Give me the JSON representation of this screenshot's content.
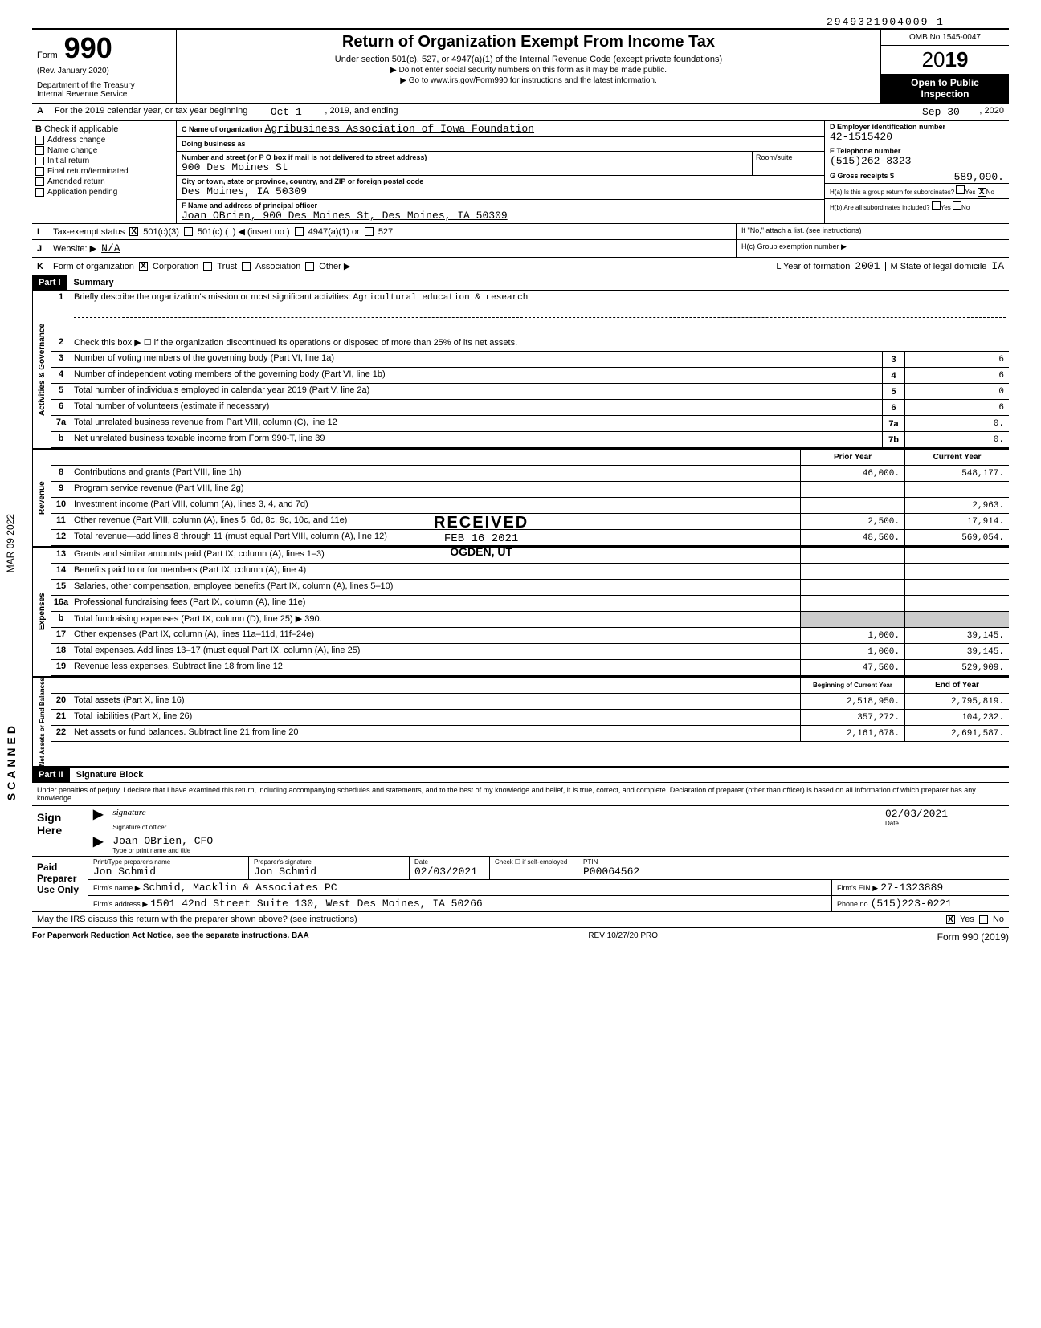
{
  "top_id": "2949321904009 1",
  "form": {
    "label": "Form",
    "number": "990",
    "rev": "(Rev. January 2020)",
    "dept1": "Department of the Treasury",
    "dept2": "Internal Revenue Service",
    "title": "Return of Organization Exempt From Income Tax",
    "sub1": "Under section 501(c), 527, or 4947(a)(1) of the Internal Revenue Code (except private foundations)",
    "sub2": "▶ Do not enter social security numbers on this form as it may be made public.",
    "sub3": "▶ Go to www.irs.gov/Form990 for instructions and the latest information.",
    "omb": "OMB No 1545-0047",
    "year_prefix": "20",
    "year_suffix": "19",
    "open1": "Open to Public",
    "open2": "Inspection"
  },
  "rowA": {
    "letter": "A",
    "text": "For the 2019 calendar year, or tax year beginning",
    "begin": "Oct 1",
    "mid": ", 2019, and ending",
    "end": "Sep 30",
    "endyear": ", 2020"
  },
  "colB": {
    "letter": "B",
    "label": "Check if applicable",
    "items": [
      "Address change",
      "Name change",
      "Initial return",
      "Final return/terminated",
      "Amended return",
      "Application pending"
    ]
  },
  "colC": {
    "c_label": "C Name of organization",
    "org": "Agribusiness Association of Iowa Foundation",
    "dba_label": "Doing business as",
    "street_label": "Number and street (or P O box if mail is not delivered to street address)",
    "street": "900 Des Moines St",
    "room_label": "Room/suite",
    "city_label": "City or town, state or province, country, and ZIP or foreign postal code",
    "city": "Des Moines, IA 50309",
    "f_label": "F Name and address of principal officer",
    "officer": "Joan OBrien, 900 Des Moines St, Des Moines, IA 50309"
  },
  "colD": {
    "d_label": "D Employer identification number",
    "ein": "42-1515420",
    "e_label": "E Telephone number",
    "phone": "(515)262-8323",
    "g_label": "G Gross receipts $",
    "gross": "589,090.",
    "ha_label": "H(a) Is this a group return for subordinates?",
    "ha_yes": "Yes",
    "ha_no": "No",
    "hb_label": "H(b) Are all subordinates included?",
    "hb_yes": "Yes",
    "hb_no": "No",
    "hb_note": "If \"No,\" attach a list. (see instructions)",
    "hc_label": "H(c) Group exemption number ▶"
  },
  "rowI": {
    "letter": "I",
    "label": "Tax-exempt status",
    "opt1": "501(c)(3)",
    "opt2": "501(c) (",
    "opt2b": ") ◀ (insert no )",
    "opt3": "4947(a)(1) or",
    "opt4": "527"
  },
  "rowJ": {
    "letter": "J",
    "label": "Website: ▶",
    "value": "N/A"
  },
  "rowK": {
    "letter": "K",
    "label": "Form of organization",
    "opts": [
      "Corporation",
      "Trust",
      "Association",
      "Other ▶"
    ],
    "l_label": "L Year of formation",
    "l_val": "2001",
    "m_label": "M State of legal domicile",
    "m_val": "IA"
  },
  "part1": {
    "hdr": "Part I",
    "title": "Summary",
    "line1_num": "1",
    "line1_text": "Briefly describe the organization's mission or most significant activities:",
    "line1_val": "Agricultural education & research",
    "line2_num": "2",
    "line2_text": "Check this box ▶ ☐ if the organization discontinued its operations or disposed of more than 25% of its net assets.",
    "lines_gov": [
      {
        "n": "3",
        "t": "Number of voting members of the governing body (Part VI, line 1a)",
        "b": "3",
        "v": "6"
      },
      {
        "n": "4",
        "t": "Number of independent voting members of the governing body (Part VI, line 1b)",
        "b": "4",
        "v": "6"
      },
      {
        "n": "5",
        "t": "Total number of individuals employed in calendar year 2019 (Part V, line 2a)",
        "b": "5",
        "v": "0"
      },
      {
        "n": "6",
        "t": "Total number of volunteers (estimate if necessary)",
        "b": "6",
        "v": "6"
      },
      {
        "n": "7a",
        "t": "Total unrelated business revenue from Part VIII, column (C), line 12",
        "b": "7a",
        "v": "0."
      },
      {
        "n": "b",
        "t": "Net unrelated business taxable income from Form 990-T, line 39",
        "b": "7b",
        "v": "0."
      }
    ],
    "col_prior": "Prior Year",
    "col_current": "Current Year",
    "lines_rev": [
      {
        "n": "8",
        "t": "Contributions and grants (Part VIII, line 1h)",
        "p": "46,000.",
        "c": "548,177."
      },
      {
        "n": "9",
        "t": "Program service revenue (Part VIII, line 2g)",
        "p": "",
        "c": ""
      },
      {
        "n": "10",
        "t": "Investment income (Part VIII, column (A), lines 3, 4, and 7d)",
        "p": "",
        "c": "2,963."
      },
      {
        "n": "11",
        "t": "Other revenue (Part VIII, column (A), lines 5, 6d, 8c, 9c, 10c, and 11e)",
        "p": "2,500.",
        "c": "17,914."
      },
      {
        "n": "12",
        "t": "Total revenue—add lines 8 through 11 (must equal Part VIII, column (A), line 12)",
        "p": "48,500.",
        "c": "569,054."
      }
    ],
    "lines_exp": [
      {
        "n": "13",
        "t": "Grants and similar amounts paid (Part IX, column (A), lines 1–3)",
        "p": "",
        "c": ""
      },
      {
        "n": "14",
        "t": "Benefits paid to or for members (Part IX, column (A), line 4)",
        "p": "",
        "c": ""
      },
      {
        "n": "15",
        "t": "Salaries, other compensation, employee benefits (Part IX, column (A), lines 5–10)",
        "p": "",
        "c": ""
      },
      {
        "n": "16a",
        "t": "Professional fundraising fees (Part IX, column (A), line 11e)",
        "p": "",
        "c": ""
      },
      {
        "n": "b",
        "t": "Total fundraising expenses (Part IX, column (D), line 25) ▶  390.",
        "shade": true
      },
      {
        "n": "17",
        "t": "Other expenses (Part IX, column (A), lines 11a–11d, 11f–24e)",
        "p": "1,000.",
        "c": "39,145."
      },
      {
        "n": "18",
        "t": "Total expenses. Add lines 13–17 (must equal Part IX, column (A), line 25)",
        "p": "1,000.",
        "c": "39,145."
      },
      {
        "n": "19",
        "t": "Revenue less expenses. Subtract line 18 from line 12",
        "p": "47,500.",
        "c": "529,909."
      }
    ],
    "col_begin": "Beginning of Current Year",
    "col_end": "End of Year",
    "lines_net": [
      {
        "n": "20",
        "t": "Total assets (Part X, line 16)",
        "p": "2,518,950.",
        "c": "2,795,819."
      },
      {
        "n": "21",
        "t": "Total liabilities (Part X, line 26)",
        "p": "357,272.",
        "c": "104,232."
      },
      {
        "n": "22",
        "t": "Net assets or fund balances. Subtract line 21 from line 20",
        "p": "2,161,678.",
        "c": "2,691,587."
      }
    ],
    "vert_gov": "Activities & Governance",
    "vert_rev": "Revenue",
    "vert_exp": "Expenses",
    "vert_net": "Net Assets or Fund Balances"
  },
  "part2": {
    "hdr": "Part II",
    "title": "Signature Block",
    "decl": "Under penalties of perjury, I declare that I have examined this return, including accompanying schedules and statements, and to the best of my knowledge and belief, it is true, correct, and complete. Declaration of preparer (other than officer) is based on all information of which preparer has any knowledge",
    "sign_label": "Sign Here",
    "sig_of": "Signature of officer",
    "sig_date_label": "Date",
    "sig_date": "02/03/2021",
    "name_title": "Joan OBrien, CFO",
    "name_label": "Type or print name and title",
    "paid_label": "Paid Preparer Use Only",
    "prep_name_label": "Print/Type preparer's name",
    "prep_name": "Jon Schmid",
    "prep_sig_label": "Preparer's signature",
    "prep_sig": "Jon Schmid",
    "prep_date_label": "Date",
    "prep_date": "02/03/2021",
    "self_emp": "Check ☐ if self-employed",
    "ptin_label": "PTIN",
    "ptin": "P00064562",
    "firm_name_label": "Firm's name ▶",
    "firm_name": "Schmid, Macklin & Associates PC",
    "firm_ein_label": "Firm's EIN ▶",
    "firm_ein": "27-1323889",
    "firm_addr_label": "Firm's address ▶",
    "firm_addr": "1501 42nd Street Suite 130, West Des Moines, IA 50266",
    "phone_label": "Phone no",
    "firm_phone": "(515)223-0221",
    "discuss": "May the IRS discuss this return with the preparer shown above? (see instructions)",
    "yes": "Yes",
    "no": "No"
  },
  "footer": {
    "left": "For Paperwork Reduction Act Notice, see the separate instructions. BAA",
    "mid": "REV 10/27/20 PRO",
    "right": "Form 990 (2019)"
  },
  "stamp": {
    "r1": "RECEIVED",
    "r2": "FEB 16 2021",
    "r3": "OGDEN, UT"
  },
  "side": {
    "scanned": "SCANNED",
    "date": "MAR 09 2022"
  }
}
